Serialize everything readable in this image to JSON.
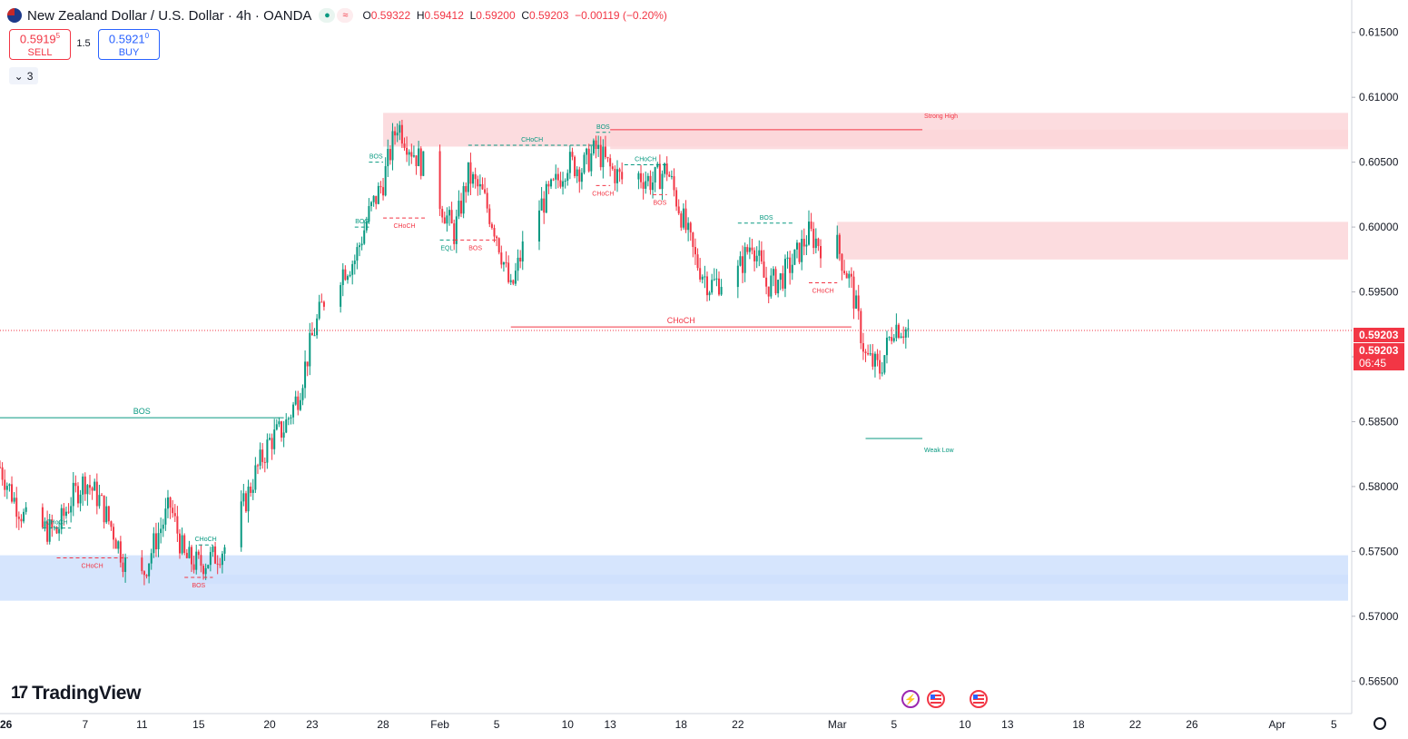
{
  "header": {
    "title": "New Zealand Dollar / U.S. Dollar · 4h · OANDA",
    "ohlc": [
      {
        "k": "O",
        "v": "0.59322"
      },
      {
        "k": "H",
        "v": "0.59412"
      },
      {
        "k": "L",
        "v": "0.59200"
      },
      {
        "k": "C",
        "v": "0.59203"
      }
    ],
    "change": "−0.00119 (−0.20%)"
  },
  "trade": {
    "sell_price": "0.5919",
    "sell_sup": "5",
    "sell_label": "SELL",
    "spread": "1.5",
    "buy_price": "0.5921",
    "buy_sup": "0",
    "buy_label": "BUY"
  },
  "indicators": {
    "count": "3"
  },
  "brand": {
    "name": "TradingView"
  },
  "price_tags": {
    "price": "0.59203",
    "price2": "0.59203",
    "countdown": "06:45"
  },
  "colors": {
    "up": "#089981",
    "down": "#f23645",
    "supply": "#fbd6d9",
    "demand": "#cfe0fd",
    "line_struct": "#089981"
  },
  "chart_data": {
    "type": "candlestick",
    "symbol": "NZDUSD",
    "interval": "4h",
    "ylim": [
      0.5625,
      0.6175
    ],
    "yticks": [
      0.615,
      0.61,
      0.605,
      0.6,
      0.595,
      0.59,
      0.585,
      0.58,
      0.575,
      0.57,
      0.565
    ],
    "ytick_labels": [
      "0.61500",
      "0.61000",
      "0.60500",
      "0.60000",
      "0.59500",
      "0.59000",
      "0.58500",
      "0.58000",
      "0.57500",
      "0.57000",
      "0.56500"
    ],
    "xticks": [
      {
        "label": "2026",
        "date": "2026-01-01",
        "bold": true
      },
      {
        "label": "7",
        "date": "2026-01-07"
      },
      {
        "label": "11",
        "date": "2026-01-11"
      },
      {
        "label": "15",
        "date": "2026-01-15"
      },
      {
        "label": "20",
        "date": "2026-01-20"
      },
      {
        "label": "23",
        "date": "2026-01-23"
      },
      {
        "label": "28",
        "date": "2026-01-28"
      },
      {
        "label": "Feb",
        "date": "2026-02-01"
      },
      {
        "label": "5",
        "date": "2026-02-05"
      },
      {
        "label": "10",
        "date": "2026-02-10"
      },
      {
        "label": "13",
        "date": "2026-02-13"
      },
      {
        "label": "18",
        "date": "2026-02-18"
      },
      {
        "label": "22",
        "date": "2026-02-22"
      },
      {
        "label": "Mar",
        "date": "2026-03-01"
      },
      {
        "label": "5",
        "date": "2026-03-05"
      },
      {
        "label": "10",
        "date": "2026-03-10"
      },
      {
        "label": "13",
        "date": "2026-03-13"
      },
      {
        "label": "18",
        "date": "2026-03-18"
      },
      {
        "label": "22",
        "date": "2026-03-22"
      },
      {
        "label": "26",
        "date": "2026-03-26"
      },
      {
        "label": "Apr",
        "date": "2026-04-01"
      },
      {
        "label": "5",
        "date": "2026-04-05"
      }
    ],
    "price_path": [
      [
        "2026-01-01",
        0.5815
      ],
      [
        "2026-01-02",
        0.579
      ],
      [
        "2026-01-03",
        0.577
      ],
      [
        "2026-01-05",
        0.5765
      ],
      [
        "2026-01-06",
        0.579
      ],
      [
        "2026-01-07",
        0.5805
      ],
      [
        "2026-01-08",
        0.579
      ],
      [
        "2026-01-09",
        0.5765
      ],
      [
        "2026-01-10",
        0.5735
      ],
      [
        "2026-01-11",
        0.573
      ],
      [
        "2026-01-12",
        0.576
      ],
      [
        "2026-01-13",
        0.5785
      ],
      [
        "2026-01-14",
        0.5745
      ],
      [
        "2026-01-15",
        0.574
      ],
      [
        "2026-01-16",
        0.5745
      ],
      [
        "2026-01-17",
        0.5755
      ],
      [
        "2026-01-18",
        0.578
      ],
      [
        "2026-01-19",
        0.581
      ],
      [
        "2026-01-20",
        0.5835
      ],
      [
        "2026-01-21",
        0.5845
      ],
      [
        "2026-01-22",
        0.587
      ],
      [
        "2026-01-23",
        0.5915
      ],
      [
        "2026-01-24",
        0.595
      ],
      [
        "2026-01-25",
        0.5965
      ],
      [
        "2026-01-26",
        0.5975
      ],
      [
        "2026-01-27",
        0.601
      ],
      [
        "2026-01-28",
        0.6035
      ],
      [
        "2026-01-29",
        0.608
      ],
      [
        "2026-01-30",
        0.606
      ],
      [
        "2026-01-31",
        0.6045
      ],
      [
        "2026-02-01",
        0.602
      ],
      [
        "2026-02-02",
        0.5995
      ],
      [
        "2026-02-03",
        0.604
      ],
      [
        "2026-02-04",
        0.6025
      ],
      [
        "2026-02-05",
        0.5995
      ],
      [
        "2026-02-06",
        0.595
      ],
      [
        "2026-02-07",
        0.599
      ],
      [
        "2026-02-08",
        0.6015
      ],
      [
        "2026-02-09",
        0.603
      ],
      [
        "2026-02-10",
        0.605
      ],
      [
        "2026-02-11",
        0.6045
      ],
      [
        "2026-02-12",
        0.606
      ],
      [
        "2026-02-13",
        0.6045
      ],
      [
        "2026-02-14",
        0.6035
      ],
      [
        "2026-02-15",
        0.604
      ],
      [
        "2026-02-16",
        0.6035
      ],
      [
        "2026-02-17",
        0.6045
      ],
      [
        "2026-02-18",
        0.601
      ],
      [
        "2026-02-19",
        0.5975
      ],
      [
        "2026-02-20",
        0.5955
      ],
      [
        "2026-02-21",
        0.596
      ],
      [
        "2026-02-22",
        0.5965
      ],
      [
        "2026-02-23",
        0.599
      ],
      [
        "2026-02-24",
        0.5955
      ],
      [
        "2026-02-25",
        0.596
      ],
      [
        "2026-02-26",
        0.5975
      ],
      [
        "2026-02-27",
        0.5995
      ],
      [
        "2026-02-28",
        0.5985
      ],
      [
        "2026-03-01",
        0.5985
      ],
      [
        "2026-03-02",
        0.5955
      ],
      [
        "2026-03-03",
        0.59
      ],
      [
        "2026-03-04",
        0.589
      ],
      [
        "2026-03-05",
        0.5925
      ],
      [
        "2026-03-06",
        0.592
      ]
    ],
    "zones": [
      {
        "type": "supply",
        "from": "2026-01-28",
        "to": "2026-04-06",
        "low": 0.6062,
        "high": 0.6088
      },
      {
        "type": "supply",
        "from": "2026-02-13",
        "to": "2026-04-06",
        "low": 0.606,
        "high": 0.6075
      },
      {
        "type": "supply",
        "from": "2026-03-01",
        "to": "2026-04-06",
        "low": 0.5975,
        "high": 0.6004
      },
      {
        "type": "demand",
        "from": "2026-01-01",
        "to": "2026-04-06",
        "low": 0.5712,
        "high": 0.5747
      },
      {
        "type": "demand",
        "from": "2026-01-15",
        "to": "2026-04-06",
        "low": 0.5725,
        "high": 0.5732
      }
    ],
    "levels": [
      {
        "label": "BOS",
        "price": 0.5853,
        "from": "2026-01-01",
        "to": "2026-01-21",
        "style": "solid",
        "color": "up",
        "label_size": "large"
      },
      {
        "label": "CHoCH",
        "price": 0.5923,
        "from": "2026-02-06",
        "to": "2026-03-02",
        "style": "solid",
        "color": "down",
        "label_size": "large"
      },
      {
        "label": "Strong High",
        "price": 0.6075,
        "from": "2026-02-13",
        "to": "2026-03-07",
        "style": "solid",
        "color": "down",
        "label_size": "small",
        "label_pos": "end"
      },
      {
        "label": "Weak Low",
        "price": 0.5837,
        "from": "2026-03-03",
        "to": "2026-03-07",
        "style": "solid",
        "color": "up",
        "label_size": "small",
        "label_pos": "end"
      },
      {
        "label": "CHoCH",
        "price": 0.5768,
        "from": "2026-01-04",
        "to": "2026-01-06",
        "style": "dashed",
        "color": "up",
        "label_size": "small"
      },
      {
        "label": "CHoCH",
        "price": 0.5745,
        "from": "2026-01-05",
        "to": "2026-01-10",
        "style": "dashed",
        "color": "down",
        "label_size": "small",
        "label_pos": "below"
      },
      {
        "label": "CHoCH",
        "price": 0.5755,
        "from": "2026-01-15",
        "to": "2026-01-16",
        "style": "dashed",
        "color": "up",
        "label_size": "small"
      },
      {
        "label": "BOS",
        "price": 0.573,
        "from": "2026-01-14",
        "to": "2026-01-16",
        "style": "dashed",
        "color": "down",
        "label_size": "small",
        "label_pos": "below"
      },
      {
        "label": "BOS",
        "price": 0.6,
        "from": "2026-01-26",
        "to": "2026-01-27",
        "style": "dashed",
        "color": "up",
        "label_size": "small"
      },
      {
        "label": "BOS",
        "price": 0.605,
        "from": "2026-01-27",
        "to": "2026-01-28",
        "style": "dashed",
        "color": "up",
        "label_size": "small"
      },
      {
        "label": "CHoCH",
        "price": 0.6007,
        "from": "2026-01-28",
        "to": "2026-01-31",
        "style": "dashed",
        "color": "down",
        "label_size": "small",
        "label_pos": "below"
      },
      {
        "label": "EQL",
        "price": 0.599,
        "from": "2026-02-01",
        "to": "2026-02-02",
        "style": "dashed",
        "color": "up",
        "label_size": "small",
        "label_pos": "below"
      },
      {
        "label": "BOS",
        "price": 0.599,
        "from": "2026-02-02",
        "to": "2026-02-05",
        "style": "dashed",
        "color": "down",
        "label_size": "small",
        "label_pos": "below"
      },
      {
        "label": "CHoCH",
        "price": 0.6063,
        "from": "2026-02-03",
        "to": "2026-02-12",
        "style": "dashed",
        "color": "up",
        "label_size": "small"
      },
      {
        "label": "BOS",
        "price": 0.6073,
        "from": "2026-02-12",
        "to": "2026-02-13",
        "style": "dashed",
        "color": "up",
        "label_size": "small"
      },
      {
        "label": "CHoCH",
        "price": 0.6032,
        "from": "2026-02-12",
        "to": "2026-02-13",
        "style": "dashed",
        "color": "down",
        "label_size": "small",
        "label_pos": "below"
      },
      {
        "label": "CHoCH",
        "price": 0.6048,
        "from": "2026-02-14",
        "to": "2026-02-17",
        "style": "dashed",
        "color": "up",
        "label_size": "small"
      },
      {
        "label": "BOS",
        "price": 0.6025,
        "from": "2026-02-16",
        "to": "2026-02-17",
        "style": "dashed",
        "color": "down",
        "label_size": "small",
        "label_pos": "below"
      },
      {
        "label": "BOS",
        "price": 0.6003,
        "from": "2026-02-22",
        "to": "2026-02-26",
        "style": "dashed",
        "color": "up",
        "label_size": "small"
      },
      {
        "label": "CHoCH",
        "price": 0.5957,
        "from": "2026-02-27",
        "to": "2026-03-01",
        "style": "dashed",
        "color": "down",
        "label_size": "small",
        "label_pos": "below"
      }
    ],
    "last_price": 0.59203
  }
}
